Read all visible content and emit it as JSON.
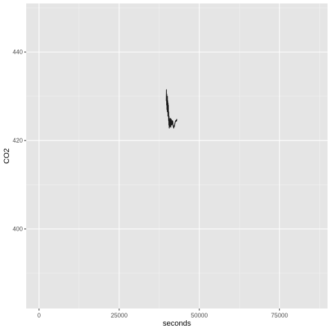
{
  "chart_data": {
    "type": "line",
    "title": "",
    "xlabel": "seconds",
    "ylabel": "CO2",
    "xlim": [
      -4000,
      90000
    ],
    "ylim": [
      382,
      451
    ],
    "x_ticks": [
      0,
      25000,
      50000,
      75000
    ],
    "x_tick_labels": [
      "0",
      "25000",
      "50000",
      "75000"
    ],
    "y_ticks": [
      400,
      420,
      440
    ],
    "y_tick_labels": [
      "400",
      "420",
      "440"
    ],
    "grid": true,
    "legend": "none",
    "colors": {
      "panel_background": "#e5e5e5",
      "grid_major": "#ffffff",
      "grid_minor": "#f2f2f2",
      "line": "#1a1a1a",
      "tick_text": "#4d4d4d",
      "axis_title": "#000000"
    },
    "series": [
      {
        "x": [
          39700,
          39750,
          39800,
          39850,
          39900,
          39950,
          40000,
          40050,
          40100,
          40150,
          40200,
          40250,
          40300,
          40350,
          40400,
          40450,
          40500,
          40550,
          40600,
          40650,
          40700,
          40750,
          40800,
          40850,
          40900,
          40950,
          41000,
          41050,
          41100,
          41150,
          41200,
          41250,
          41300,
          41350,
          41400,
          41450,
          41500,
          41550,
          41600,
          41650,
          41700,
          41750,
          41800,
          41900,
          42000,
          42100,
          42200,
          42300,
          42400,
          42500,
          42600,
          42700,
          42800,
          42900,
          43000
        ],
        "y": [
          429,
          431.5,
          428,
          430.5,
          427,
          429.5,
          426.5,
          430,
          427,
          429,
          425.5,
          428.5,
          426,
          428,
          424.5,
          426.5,
          423.5,
          425.5,
          422.8,
          424.5,
          423,
          425,
          423.5,
          424.8,
          423.2,
          424.5,
          423.5,
          425,
          423,
          424.5,
          423.5,
          424.8,
          423.8,
          424.6,
          423.5,
          424.4,
          423.6,
          424.2,
          423.9,
          424.5,
          423.8,
          424.3,
          423.5,
          423,
          422.8,
          423.4,
          423.1,
          423.6,
          423.9,
          424.2,
          424.5,
          424.3,
          424.6,
          424.4,
          424.8
        ]
      }
    ]
  }
}
